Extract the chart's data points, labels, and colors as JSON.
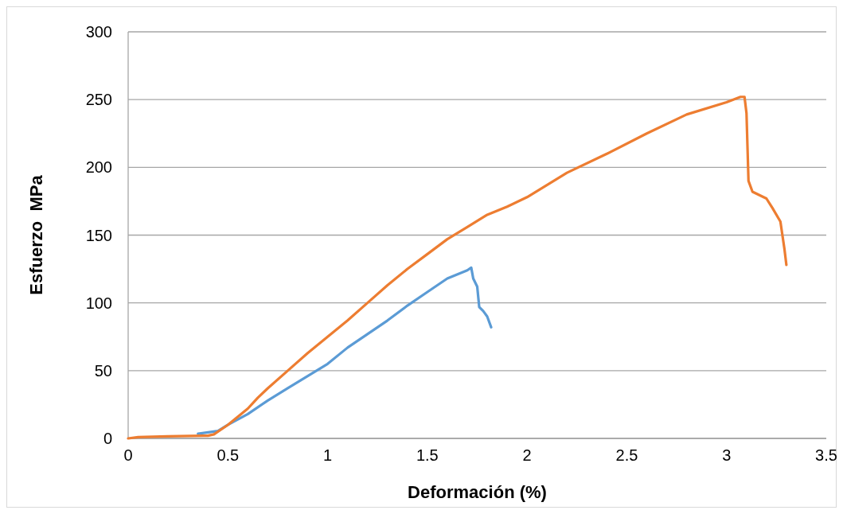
{
  "chart_data": {
    "type": "line",
    "xlabel": "Deformación (%)",
    "ylabel": "Esfuerzo  MPa",
    "xlim": [
      0,
      3.5
    ],
    "xticks": [
      0,
      0.5,
      1,
      1.5,
      2,
      2.5,
      3,
      3.5
    ],
    "ylim": [
      0,
      300
    ],
    "yticks": [
      0,
      50,
      100,
      150,
      200,
      250,
      300
    ],
    "grid": "y",
    "marker": "none",
    "line_style": "solid",
    "series": [
      {
        "color": "#5b9bd5",
        "x": [
          0.35,
          0.45,
          0.5,
          0.6,
          0.7,
          0.8,
          0.9,
          1.0,
          1.1,
          1.2,
          1.3,
          1.4,
          1.5,
          1.6,
          1.7,
          1.72,
          1.73,
          1.75,
          1.76,
          1.78,
          1.8,
          1.82
        ],
        "values": [
          3.5,
          5.5,
          10,
          18,
          28,
          37,
          46,
          55,
          67,
          77,
          87,
          98,
          108,
          118,
          124,
          126,
          118,
          112,
          97,
          94,
          90,
          82
        ]
      },
      {
        "color": "#ed7d31",
        "x": [
          0,
          0.05,
          0.2,
          0.4,
          0.43,
          0.5,
          0.6,
          0.65,
          0.7,
          0.8,
          0.9,
          1.0,
          1.1,
          1.2,
          1.3,
          1.4,
          1.5,
          1.6,
          1.7,
          1.8,
          1.9,
          2.0,
          2.2,
          2.4,
          2.6,
          2.8,
          3.0,
          3.07,
          3.09,
          3.1,
          3.11,
          3.13,
          3.2,
          3.23,
          3.27,
          3.29,
          3.3
        ],
        "values": [
          0,
          1,
          1.5,
          2,
          3,
          10,
          22,
          30,
          37,
          50,
          63,
          75,
          87,
          100,
          113,
          125,
          136,
          147,
          156,
          165,
          171,
          178,
          196,
          210,
          225,
          239,
          248,
          252,
          252,
          240,
          190,
          182,
          177,
          170,
          160,
          140,
          128
        ]
      }
    ]
  }
}
